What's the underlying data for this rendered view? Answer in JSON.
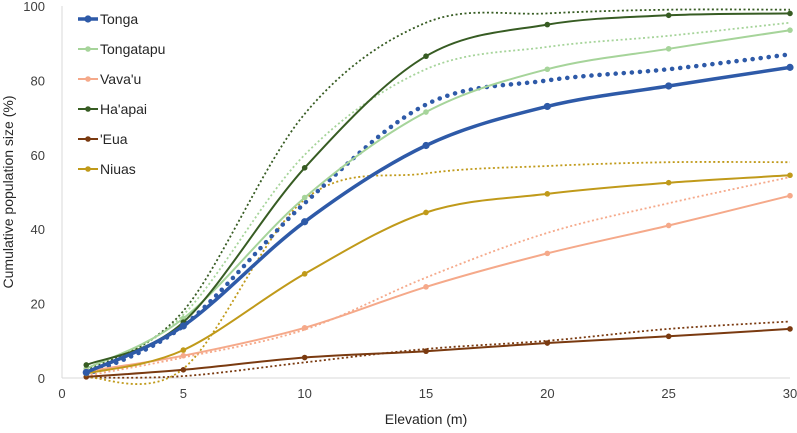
{
  "chart_data": {
    "type": "line",
    "title": "",
    "xlabel": "Elevation (m)",
    "ylabel": "Cumulative population size (%)",
    "xlim": [
      0,
      30
    ],
    "ylim": [
      0,
      100
    ],
    "xticks": [
      0,
      5,
      10,
      15,
      20,
      25,
      30
    ],
    "yticks": [
      0,
      20,
      40,
      60,
      80,
      100
    ],
    "x": [
      1,
      5,
      10,
      15,
      20,
      25,
      30
    ],
    "legend_position": "top-left",
    "series": [
      {
        "name": "Tonga",
        "color": "#2e5aa8",
        "width": 3.5,
        "values": [
          1.5,
          14,
          42,
          62.5,
          73,
          78.5,
          83.5
        ],
        "dotted": [
          0.8,
          14,
          47,
          73.5,
          80,
          83,
          87
        ]
      },
      {
        "name": "Tongatapu",
        "color": "#a6d49a",
        "width": 2,
        "values": [
          2.5,
          16,
          48.5,
          71.5,
          83,
          88.5,
          93.5
        ],
        "dotted": [
          1.5,
          17,
          60,
          83,
          89,
          92,
          95.5
        ]
      },
      {
        "name": "Vava'u",
        "color": "#f5a98a",
        "width": 2,
        "values": [
          1.8,
          6,
          13.5,
          24.5,
          33.5,
          41,
          49
        ],
        "dotted": [
          0.6,
          5.5,
          13,
          27,
          39,
          47,
          54
        ]
      },
      {
        "name": "Ha'apai",
        "color": "#375c23",
        "width": 2,
        "values": [
          3.5,
          15,
          56.5,
          86.5,
          95,
          97.5,
          98
        ],
        "dotted": [
          2,
          18,
          71,
          95.5,
          98,
          99,
          99
        ]
      },
      {
        "name": "'Eua",
        "color": "#7a3a10",
        "width": 2,
        "values": [
          0.3,
          2.2,
          5.5,
          7.2,
          9.4,
          11.2,
          13.2
        ],
        "dotted": [
          0.1,
          0.5,
          4.2,
          7.8,
          10,
          13.2,
          15.2
        ]
      },
      {
        "name": "Niuas",
        "color": "#c09a1a",
        "width": 2,
        "values": [
          1.2,
          7.5,
          28,
          44.5,
          49.5,
          52.5,
          54.5
        ],
        "dotted": [
          0.2,
          2.5,
          48,
          55,
          57,
          58,
          58
        ]
      }
    ]
  }
}
